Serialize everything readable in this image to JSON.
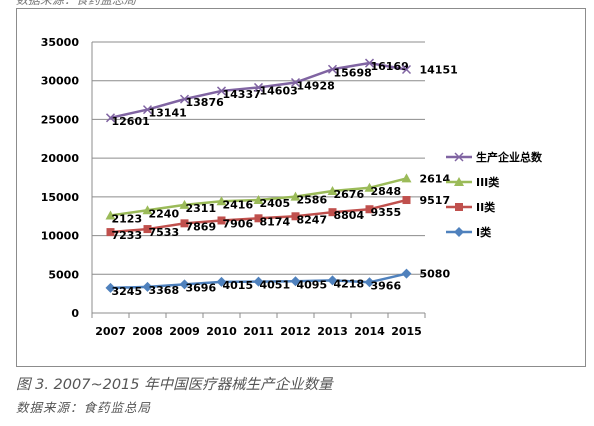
{
  "header_fragment": "数据来源：食药监总局",
  "figure": {
    "caption": "图 3. 2007~2015 年中国医疗器械生产企业数量",
    "source": "数据来源：食药监总局"
  },
  "chart_data": {
    "type": "line",
    "title": "",
    "xlabel": "",
    "ylabel": "",
    "categories": [
      "2007",
      "2008",
      "2009",
      "2010",
      "2011",
      "2012",
      "2013",
      "2014",
      "2015"
    ],
    "ylim": [
      0,
      35000
    ],
    "yticks": [
      0,
      5000,
      10000,
      15000,
      20000,
      25000,
      30000,
      35000
    ],
    "grid": "horizontal",
    "legend_position": "right",
    "series": [
      {
        "name": "生产企业总数",
        "color": "#8064a2",
        "marker": "x",
        "values": [
          25210,
          26270,
          27620,
          28680,
          29130,
          29770,
          31480,
          32280,
          31450
        ],
        "labels": [
          "12601",
          "13141",
          "13876",
          "14337",
          "14603",
          "14928",
          "15698",
          "16169",
          "14151"
        ]
      },
      {
        "name": "III类",
        "color": "#9bbb59",
        "marker": "triangle",
        "values": [
          12600,
          13270,
          13970,
          14430,
          14600,
          15030,
          15760,
          16170,
          17380
        ],
        "labels": [
          "2123",
          "2240",
          "2311",
          "2416",
          "2405",
          "2586",
          "2676",
          "2848",
          "2614"
        ]
      },
      {
        "name": "II类",
        "color": "#c0504d",
        "marker": "square",
        "values": [
          10450,
          10840,
          11580,
          11950,
          12230,
          12490,
          13020,
          13400,
          14590
        ],
        "labels": [
          "7233",
          "7533",
          "7869",
          "7906",
          "8174",
          "8247",
          "8804",
          "9355",
          "9517"
        ]
      },
      {
        "name": "I类",
        "color": "#4f81bd",
        "marker": "diamond",
        "values": [
          3245,
          3368,
          3696,
          4015,
          4051,
          4095,
          4218,
          3966,
          5080
        ],
        "labels": [
          "3245",
          "3368",
          "3696",
          "4015",
          "4051",
          "4095",
          "4218",
          "3966",
          "5080"
        ]
      }
    ]
  }
}
